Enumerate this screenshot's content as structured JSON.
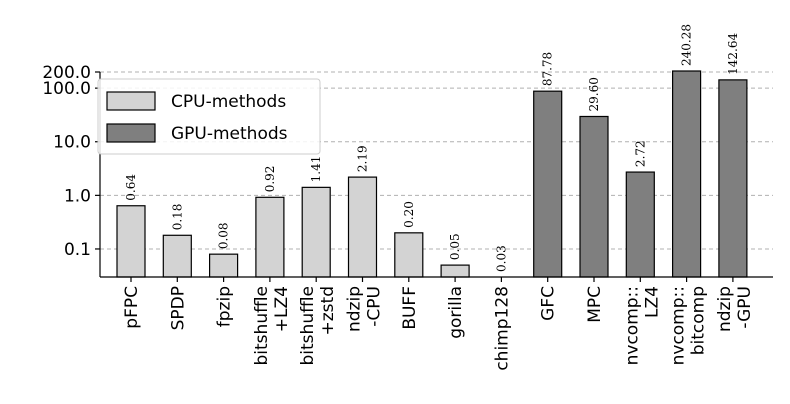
{
  "chart_data": {
    "type": "bar",
    "yscale": "log",
    "ylim": [
      0.03,
      200
    ],
    "yticks": [
      {
        "value": 0.1,
        "label": "0.1"
      },
      {
        "value": 1,
        "label": "1.0"
      },
      {
        "value": 10,
        "label": "10.0"
      },
      {
        "value": 100,
        "label": "100.0"
      },
      {
        "value": 200,
        "label": "200.0"
      }
    ],
    "grid": "horizontal-dashed",
    "legend_position": "top-left",
    "series": [
      {
        "name": "CPU-methods",
        "color": "#d3d3d3"
      },
      {
        "name": "GPU-methods",
        "color": "#7f7f7f"
      }
    ],
    "bars": [
      {
        "category": [
          "pFPC"
        ],
        "value": 0.64,
        "label": "0.64",
        "series": 0
      },
      {
        "category": [
          "SPDP"
        ],
        "value": 0.18,
        "label": "0.18",
        "series": 0
      },
      {
        "category": [
          "fpzip"
        ],
        "value": 0.08,
        "label": "0.08",
        "series": 0
      },
      {
        "category": [
          "bitshuffle",
          "+LZ4"
        ],
        "value": 0.92,
        "label": "0.92",
        "series": 0
      },
      {
        "category": [
          "bitshuffle",
          "+zstd"
        ],
        "value": 1.41,
        "label": "1.41",
        "series": 0
      },
      {
        "category": [
          "ndzip",
          "-CPU"
        ],
        "value": 2.19,
        "label": "2.19",
        "series": 0
      },
      {
        "category": [
          "BUFF"
        ],
        "value": 0.2,
        "label": "0.20",
        "series": 0
      },
      {
        "category": [
          "gorilla"
        ],
        "value": 0.05,
        "label": "0.05",
        "series": 0
      },
      {
        "category": [
          "chimp128"
        ],
        "value": 0.03,
        "label": "0.03",
        "series": 0
      },
      {
        "category": [
          "GFC"
        ],
        "value": 87.78,
        "label": "87.78",
        "series": 1
      },
      {
        "category": [
          "MPC"
        ],
        "value": 29.6,
        "label": "29.60",
        "series": 1
      },
      {
        "category": [
          "nvcomp::",
          "LZ4"
        ],
        "value": 2.72,
        "label": "2.72",
        "series": 1
      },
      {
        "category": [
          "nvcomp::",
          "bitcomp"
        ],
        "value": 240.28,
        "label": "240.28",
        "series": 1
      },
      {
        "category": [
          "ndzip",
          "-GPU"
        ],
        "value": 142.64,
        "label": "142.64",
        "series": 1
      }
    ]
  }
}
